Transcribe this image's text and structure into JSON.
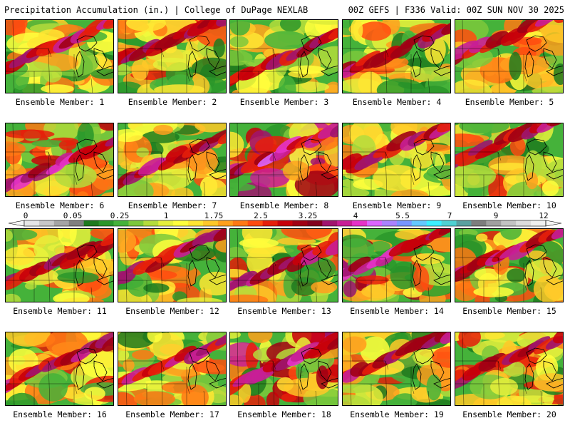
{
  "header": {
    "left": "Precipitation Accumulation (in.) | College of DuPage NEXLAB",
    "right": "00Z GEFS | F336 Valid: 00Z SUN NOV 30 2025"
  },
  "members": [
    {
      "label": "Ensemble Member: 1",
      "intensity": 0.55,
      "band": 0.62,
      "seed": 1
    },
    {
      "label": "Ensemble Member: 2",
      "intensity": 0.6,
      "band": 0.55,
      "seed": 2
    },
    {
      "label": "Ensemble Member: 3",
      "intensity": 0.5,
      "band": 0.8,
      "seed": 3
    },
    {
      "label": "Ensemble Member: 4",
      "intensity": 0.55,
      "band": 0.7,
      "seed": 4
    },
    {
      "label": "Ensemble Member: 5",
      "intensity": 0.62,
      "band": 0.5,
      "seed": 5
    },
    {
      "label": "Ensemble Member: 6",
      "intensity": 0.68,
      "band": 0.85,
      "seed": 6
    },
    {
      "label": "Ensemble Member: 7",
      "intensity": 0.58,
      "band": 0.78,
      "seed": 7
    },
    {
      "label": "Ensemble Member: 8",
      "intensity": 0.8,
      "band": 0.65,
      "seed": 8
    },
    {
      "label": "Ensemble Member: 9",
      "intensity": 0.55,
      "band": 0.6,
      "seed": 9
    },
    {
      "label": "Ensemble Member: 10",
      "intensity": 0.6,
      "band": 0.5,
      "seed": 10
    },
    {
      "label": "Ensemble Member: 11",
      "intensity": 0.55,
      "band": 0.75,
      "seed": 11
    },
    {
      "label": "Ensemble Member: 12",
      "intensity": 0.56,
      "band": 0.65,
      "seed": 12
    },
    {
      "label": "Ensemble Member: 13",
      "intensity": 0.62,
      "band": 0.8,
      "seed": 13
    },
    {
      "label": "Ensemble Member: 14",
      "intensity": 0.75,
      "band": 0.6,
      "seed": 14
    },
    {
      "label": "Ensemble Member: 15",
      "intensity": 0.62,
      "band": 0.62,
      "seed": 15
    },
    {
      "label": "Ensemble Member: 16",
      "intensity": 0.6,
      "band": 0.7,
      "seed": 16
    },
    {
      "label": "Ensemble Member: 17",
      "intensity": 0.55,
      "band": 0.7,
      "seed": 17
    },
    {
      "label": "Ensemble Member: 18",
      "intensity": 0.78,
      "band": 0.72,
      "seed": 18
    },
    {
      "label": "Ensemble Member: 19",
      "intensity": 0.6,
      "band": 0.6,
      "seed": 19
    },
    {
      "label": "Ensemble Member: 20",
      "intensity": 0.62,
      "band": 0.65,
      "seed": 20
    }
  ],
  "colorbar": {
    "labels": [
      "0",
      "0.05",
      "0.25",
      "1",
      "1.75",
      "2.5",
      "3.25",
      "4",
      "5.5",
      "7",
      "9",
      "12"
    ],
    "colors": [
      "#e6e6e6",
      "#c8c8c8",
      "#a5a5a5",
      "#7f7f7f",
      "#1e7a1e",
      "#2a962a",
      "#45b23a",
      "#7cc83c",
      "#b4dc3c",
      "#e6f03c",
      "#ffff3c",
      "#ffe632",
      "#ffc828",
      "#ffa01e",
      "#ff7814",
      "#ff4b0f",
      "#e61e0a",
      "#c8000a",
      "#a00014",
      "#82001e",
      "#a0146e",
      "#c81e96",
      "#e632c8",
      "#dc64ff",
      "#aa82ff",
      "#7896ff",
      "#64c8ff",
      "#3cf0ff",
      "#50d2d2",
      "#5aa0a0",
      "#7d7d7d",
      "#a0a0a0",
      "#c3c3c3",
      "#dcdcdc",
      "#f0f0f0"
    ]
  }
}
